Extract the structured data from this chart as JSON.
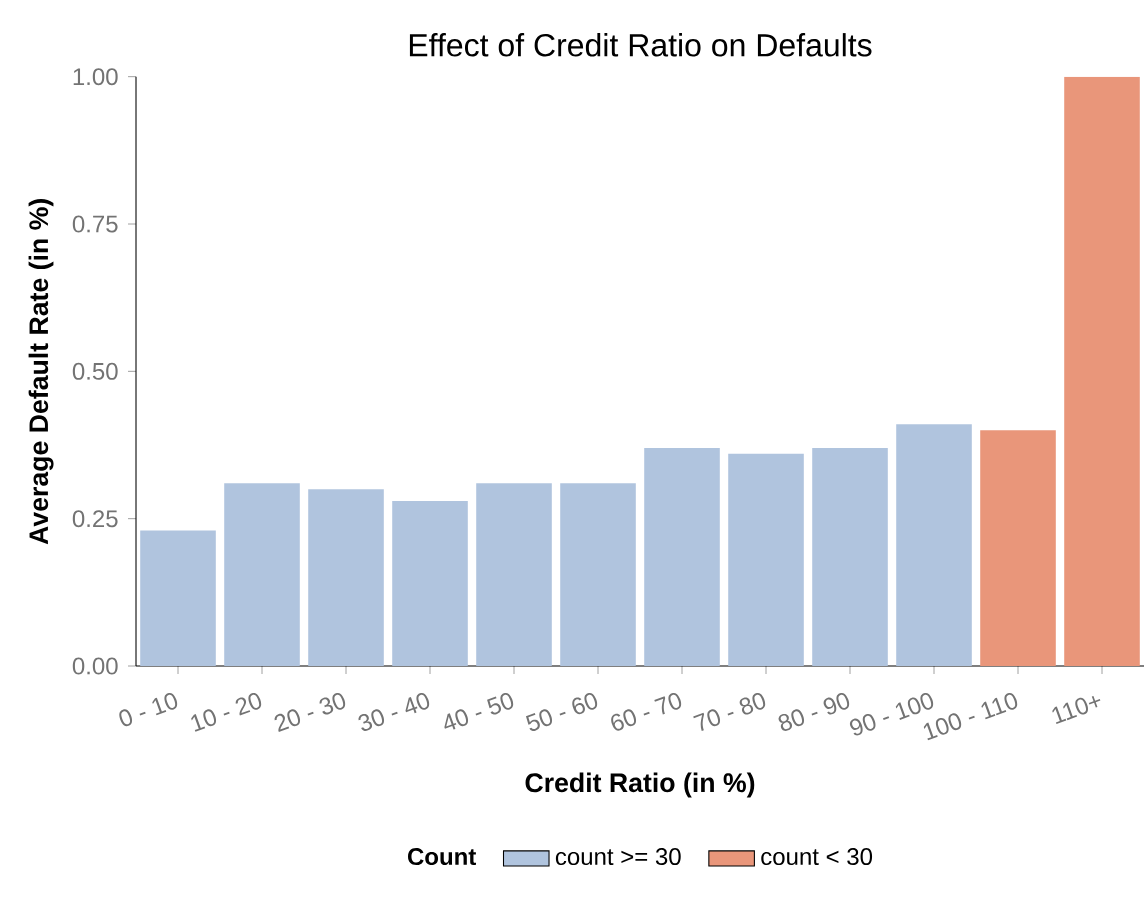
{
  "chart_data": {
    "type": "bar",
    "title": "Effect of Credit Ratio on Defaults",
    "xlabel": "Credit Ratio (in %)",
    "ylabel": "Average Default Rate (in %)",
    "legend_title": "Count",
    "categories": [
      "0 - 10",
      "10 - 20",
      "20 - 30",
      "30 - 40",
      "40 - 50",
      "50 - 60",
      "60 - 70",
      "70 - 80",
      "80 - 90",
      "90 - 100",
      "100 - 110",
      "110+"
    ],
    "series": [
      {
        "name": "count >= 30",
        "color": "#b0c4de",
        "values": [
          0.23,
          0.31,
          0.3,
          0.28,
          0.31,
          0.31,
          0.37,
          0.36,
          0.37,
          0.41,
          null,
          null
        ]
      },
      {
        "name": "count < 30",
        "color": "#e9967a",
        "values": [
          null,
          null,
          null,
          null,
          null,
          null,
          null,
          null,
          null,
          null,
          0.4,
          1.0
        ]
      }
    ],
    "ylim": [
      0,
      1
    ],
    "yticks": [
      {
        "value": 0,
        "label": "0.00"
      },
      {
        "value": 0.25,
        "label": "0.25"
      },
      {
        "value": 0.5,
        "label": "0.50"
      },
      {
        "value": 0.75,
        "label": "0.75"
      },
      {
        "value": 1,
        "label": "1.00"
      }
    ],
    "legend": "bottom"
  }
}
